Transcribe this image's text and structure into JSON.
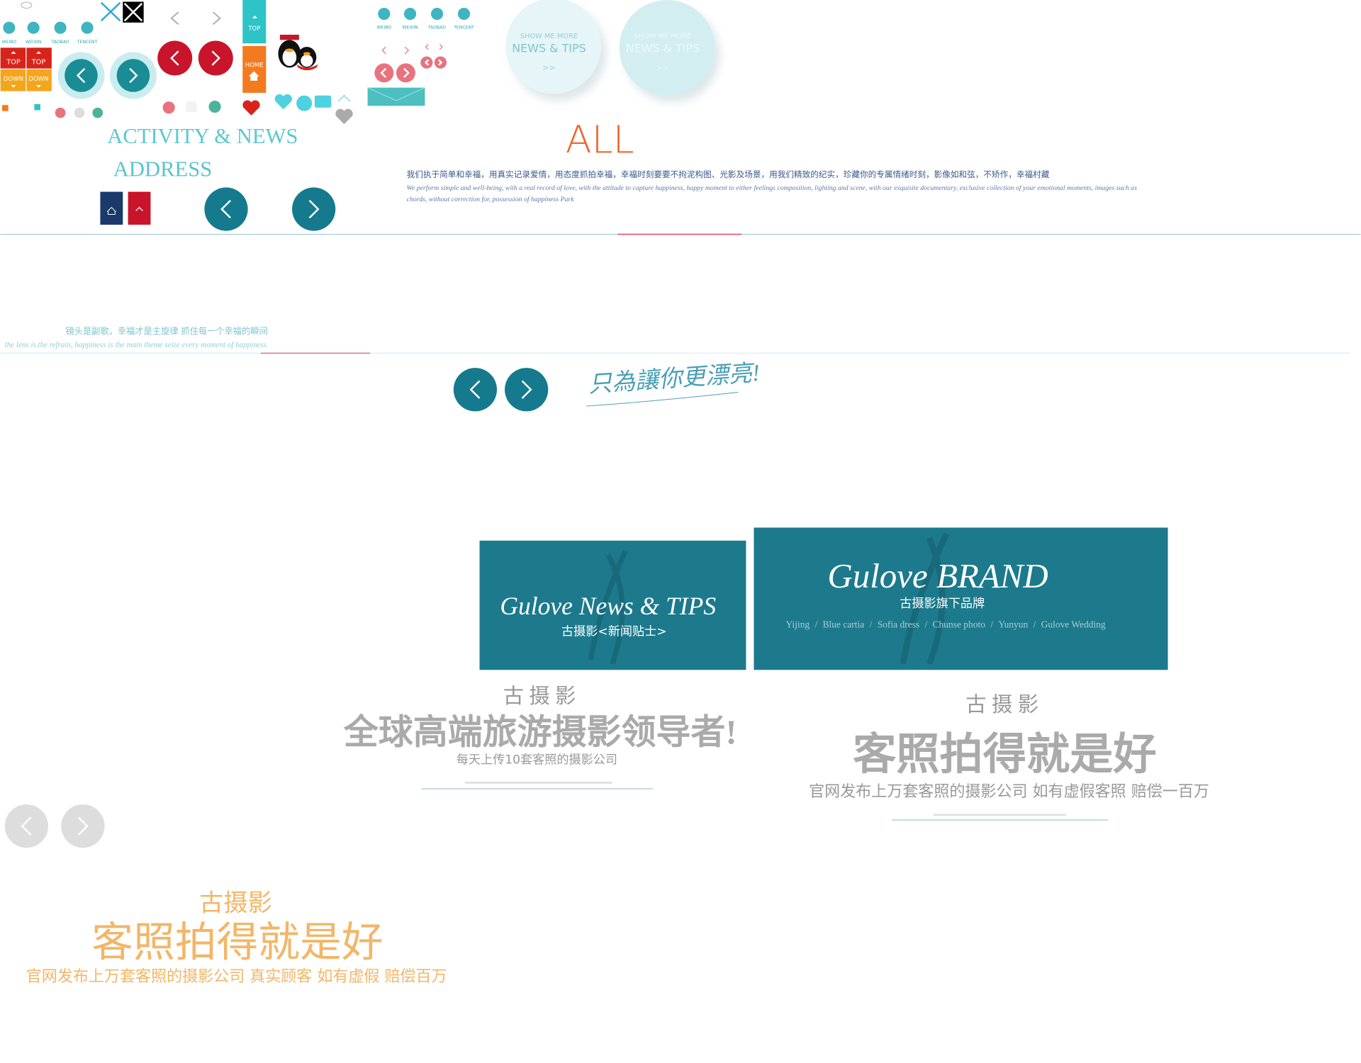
{
  "social_icons_large": {
    "labels": [
      "WEIBO",
      "WEIXIN",
      "TAOBAO",
      "TENCENT"
    ]
  },
  "social_icons_small": {
    "labels": [
      "WEIBO",
      "WEIXIN",
      "TAOBAO",
      "TENCENT"
    ]
  },
  "scroll_buttons": [
    "TOP",
    "TOP",
    "DOWN",
    "DOWN"
  ],
  "side_tabs": [
    "TOP",
    "HOME"
  ],
  "bubbles": [
    {
      "kicker": "SHOW ME MORE",
      "title": "NEWS & TIPS",
      "arrow": ">>"
    },
    {
      "kicker": "SHOW ME MORE",
      "title": "NEWS & TIPS",
      "arrow": ">>"
    }
  ],
  "headings": {
    "activity": "ACTIVITY & NEWS",
    "address": "ADDRESS",
    "all": "ALL"
  },
  "intro": {
    "zh": "我们执于简单和幸福，用真实记录爱情，用态度抓拍幸福，幸福时刻要要不拘泥构图、光影及场景，用我们精致的纪实，珍藏你的专属情绪时刻，影像如和弦，不矫作，幸福村藏",
    "en_1": "We perform simple and well-being, with a real record of love, with the attitude to capture happiness, happy moment to either feelings composition, lighting and scene, with our exquisite documentary, exclusive collection of your emotional moments, images such as",
    "en_2": "chords, without correction for, possession of happiness Park"
  },
  "motto": {
    "zh": "镜头是副歌，幸福才是主旋律  抓住每一个幸福的瞬间",
    "en": "the lens is the refrain, happiness is the main theme   seize every moment of happiness"
  },
  "handwriting": "只為讓你更漂亮!",
  "news_panel": {
    "title": "Gulove News & TIPS",
    "subtitle": "古摄影<新闻贴士>"
  },
  "brand_panel": {
    "title": "Gulove BRAND",
    "subtitle": "古摄影旗下品牌",
    "separator": "/",
    "brands": [
      "Yijing",
      "Blue cartia",
      "Sofia dress",
      "Chunse photo",
      "Yunyun",
      "Gulove Wedding"
    ]
  },
  "slogan_a": {
    "logo": "古摄影",
    "headline": "全球高端旅游摄影领导者!",
    "sub": "每天上传10套客照的摄影公司"
  },
  "slogan_b": {
    "logo": "古摄影",
    "headline": "客照拍得就是好",
    "sub": "官网发布上万套客照的摄影公司  如有虚假客照  赔偿一百万"
  },
  "slogan_c": {
    "logo": "古摄影",
    "headline": "客照拍得就是好",
    "sub": "官网发布上万套客照的摄影公司  真实顾客  如有虚假 赔偿百万"
  }
}
